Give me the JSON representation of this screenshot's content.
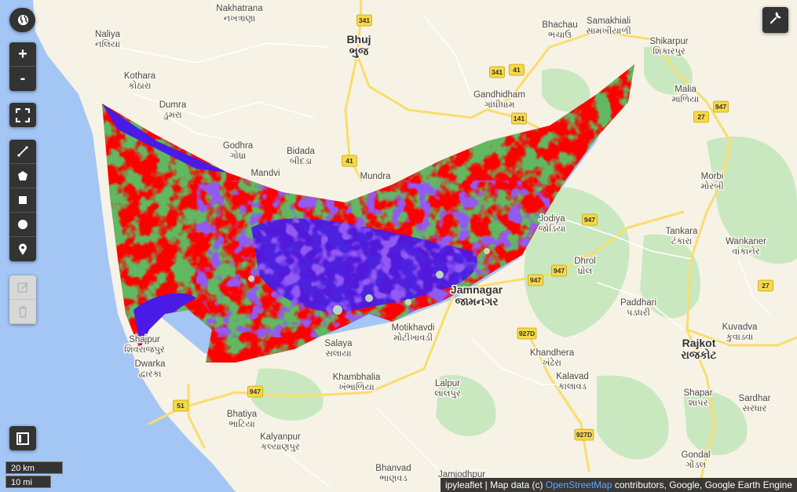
{
  "map": {
    "places": [
      {
        "name": "Nakhatrana",
        "local": "નખત્રાણા"
      },
      {
        "name": "Bhuj",
        "local": "ભુજ"
      },
      {
        "name": "Bhachau",
        "local": "ભચાઉ"
      },
      {
        "name": "Samakhiali",
        "local": "સામખીયાળી"
      },
      {
        "name": "Naliya",
        "local": "નલિયા"
      },
      {
        "name": "Shikarpur",
        "local": "શિકારપુર"
      },
      {
        "name": "Kothara",
        "local": "કોઠારા"
      },
      {
        "name": "Gandhidham",
        "local": "ગાંધીધામ"
      },
      {
        "name": "Malia",
        "local": "માળિયા"
      },
      {
        "name": "Dumra",
        "local": "ડુમરા"
      },
      {
        "name": "Godhra",
        "local": "ગોધ્રા"
      },
      {
        "name": "Bidada",
        "local": "બીદડા"
      },
      {
        "name": "Mandvi",
        "local": ""
      },
      {
        "name": "Mundra",
        "local": ""
      },
      {
        "name": "Morbi",
        "local": "મોરબી"
      },
      {
        "name": "Jodiya",
        "local": "જોડિયા"
      },
      {
        "name": "Tankara",
        "local": "ટંકારા"
      },
      {
        "name": "Wankaner",
        "local": "વાંકાનેર"
      },
      {
        "name": "Dhrol",
        "local": "ધ્રોલ"
      },
      {
        "name": "Jamnagar",
        "local": "જામનગર"
      },
      {
        "name": "Paddhari",
        "local": "પડધરી"
      },
      {
        "name": "Motikhavdi",
        "local": "મોટીખાવડી"
      },
      {
        "name": "Salaya",
        "local": "સલાયા"
      },
      {
        "name": "Kuvadva",
        "local": "કુવાડવા"
      },
      {
        "name": "Rajkot",
        "local": "રાજકોટ"
      },
      {
        "name": "Khandhera",
        "local": "ખંઢેરા"
      },
      {
        "name": "Dwarka",
        "local": "દ્વારકા"
      },
      {
        "name": "Khambhalia",
        "local": "ખંભાળિયા"
      },
      {
        "name": "Lalpur",
        "local": "લાલપુર"
      },
      {
        "name": "Kalavad",
        "local": "કાલાવડ"
      },
      {
        "name": "Shapar",
        "local": "શાપર"
      },
      {
        "name": "Sardhar",
        "local": "સરધાર"
      },
      {
        "name": "Bhatiya",
        "local": "ભાટિયા"
      },
      {
        "name": "Kalyanpur",
        "local": "કલ્યાણપુર"
      },
      {
        "name": "Bhanvad",
        "local": "ભાણવડ"
      },
      {
        "name": "Jamjodhpur",
        "local": ""
      },
      {
        "name": "Gondal",
        "local": "ગોંડલ"
      },
      {
        "name": "Shajpur",
        "local": "શિવરાજપુર"
      }
    ],
    "shields": [
      "341",
      "341",
      "41",
      "141",
      "41",
      "947",
      "27",
      "947",
      "947",
      "947",
      "27",
      "927D",
      "947",
      "51",
      "927D"
    ],
    "overlay_colors": {
      "high": "#ff0000",
      "mid": "#1f7a1f",
      "low": "#4a1ae6"
    },
    "colors": {
      "land": "#f7f2e6",
      "sea": "#a4c6f5",
      "park": "#c9e8c0",
      "road_major": "#f9dd6c",
      "road_minor": "#ffffff"
    }
  },
  "controls": {
    "zoom_in": "+",
    "zoom_out": "-"
  },
  "scale": {
    "metric": "20 km",
    "imperial": "10 mi"
  },
  "attribution": {
    "prefix": "ipyleaflet | Map data (c) ",
    "link": "OpenStreetMap",
    "suffix": " contributors, Google, Google Earth Engine"
  }
}
